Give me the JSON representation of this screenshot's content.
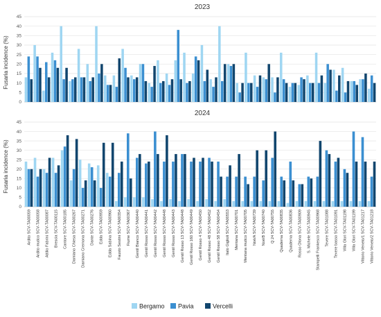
{
  "chart_data": [
    {
      "type": "bar",
      "title": "2023",
      "ylabel": "Fusaria incidence (%)",
      "ylim": [
        0,
        45
      ],
      "yticks": [
        0,
        5,
        10,
        15,
        20,
        25,
        30,
        35,
        40,
        45
      ],
      "grid": true,
      "series": [
        {
          "name": "Bergamo",
          "color": "#9fd6f2",
          "values": [
            13,
            30,
            6,
            26,
            40,
            11,
            28,
            20,
            40,
            14,
            14,
            28,
            14,
            20,
            10,
            22,
            15,
            22,
            26,
            15,
            30,
            12,
            40,
            20,
            10,
            26,
            14,
            13,
            13,
            26,
            8,
            9,
            14,
            26,
            10,
            17,
            18,
            11,
            12,
            7
          ]
        },
        {
          "name": "Pavia",
          "color": "#3b8fd1",
          "values": [
            24,
            24,
            21,
            22,
            12,
            12,
            13,
            11,
            15,
            9,
            8,
            18,
            12,
            20,
            8,
            10,
            9,
            38,
            10,
            24,
            11,
            8,
            11,
            19,
            5,
            10,
            8,
            12,
            5,
            12,
            10,
            13,
            10,
            10,
            20,
            6,
            5,
            11,
            12,
            14
          ]
        },
        {
          "name": "Vercelli",
          "color": "#12466e",
          "values": [
            12,
            18,
            13,
            18,
            18,
            13,
            13,
            13,
            20,
            9,
            23,
            13,
            13,
            11,
            19,
            11,
            12,
            12,
            11,
            22,
            17,
            13,
            20,
            20,
            10,
            10,
            14,
            20,
            13,
            10,
            10,
            12,
            10,
            14,
            17,
            14,
            11,
            9,
            15,
            10
          ]
        }
      ]
    },
    {
      "type": "bar",
      "title": "2024",
      "ylabel": "Fusaria incidence (%)",
      "ylim": [
        0,
        45
      ],
      "yticks": [
        0,
        5,
        10,
        15,
        20,
        25,
        30,
        35,
        40,
        45
      ],
      "grid": true,
      "categories": [
        "Ardito SCV-TA00059",
        "Ardito mutico SCV-TA00058",
        "Attilio Fabrini SCV-TA00087",
        "Brescia SCV-TA00115",
        "Cantore SCV-TA00185",
        "Damiano Chiesa SCV-TA00267",
        "Damiano Cremona SCV-TA00271",
        "Dante SCV-TA00276",
        "Edda SCV-TA00959",
        "Edda Sabina SCV-TA00960",
        "Fausto Sestini SCV-TA00354",
        "Fiume SCV-TA00367",
        "Gentil Bianco SCV-TA00440",
        "Gentil Rosso SCV-TA00441",
        "Gentil Rosso SCV-TA00442",
        "Gentil Rosso SCV-TA00448",
        "Gentil Rosso SCV-TA00443",
        "Gentil Rosso 13 SCV-TA00448",
        "Gentil Rosso 160 SCV-TA00449",
        "Gentil Rosso 4 SCV-TA00450",
        "Gentil Rosso 48 SCV-TA00452",
        "Gentil Rosso 58 SCV-TA00454",
        "Italo Giglioli SCV-TA00553",
        "Mentana SCV-TA00701",
        "Mentana mutico SCV-TA00705",
        "Noè/A SCV-TA00739",
        "Noè/B SCV-TA00740",
        "Q 24 SCV-TA00755",
        "Quaderna SCV-TA00835",
        "Quaderna SCV-TA00836",
        "Rosso Olona SCV-TA00909",
        "S. Michele SCV-TA00945",
        "Stampelli Frankesco SCV-TA00968",
        "Tevere SCV-TA01088",
        "Tevere basso SCV-TA01091",
        "Villa Glori SCV-TA01198",
        "Villa Glori SCV-TA01199",
        "Vittorio Veneto/1 SCV-TA01217",
        "Vittorio Veneto/2 SCV-TA01218"
      ],
      "series": [
        {
          "name": "Bergamo",
          "color": "#9fd6f2",
          "values": [
            24,
            26,
            20,
            26,
            30,
            14,
            25,
            23,
            22,
            18,
            3,
            5,
            5,
            5,
            4,
            3,
            4,
            3,
            4,
            3,
            4,
            3,
            4,
            3,
            3,
            3,
            3,
            3,
            3,
            2,
            3,
            3,
            3,
            3,
            3,
            3,
            3,
            3,
            3
          ]
        },
        {
          "name": "Pavia",
          "color": "#3b8fd1",
          "values": [
            20,
            16,
            18,
            18,
            32,
            20,
            10,
            21,
            10,
            16,
            18,
            39,
            26,
            23,
            40,
            24,
            24,
            28,
            24,
            24,
            26,
            24,
            16,
            16,
            16,
            16,
            14,
            26,
            16,
            24,
            12,
            16,
            16,
            30,
            24,
            20,
            40,
            37,
            16
          ]
        },
        {
          "name": "Vercelli",
          "color": "#12466e",
          "values": [
            20,
            20,
            26,
            22,
            38,
            36,
            14,
            14,
            34,
            34,
            24,
            15,
            28,
            24,
            28,
            38,
            28,
            28,
            26,
            26,
            24,
            16,
            22,
            28,
            12,
            30,
            30,
            40,
            14,
            14,
            12,
            15,
            35,
            28,
            26,
            18,
            24,
            24,
            24
          ]
        }
      ]
    }
  ],
  "legend": {
    "position": "bottom",
    "items": [
      {
        "label": "Bergamo",
        "color": "#9fd6f2"
      },
      {
        "label": "Pavia",
        "color": "#3b8fd1"
      },
      {
        "label": "Vercelli",
        "color": "#12466e"
      }
    ]
  }
}
